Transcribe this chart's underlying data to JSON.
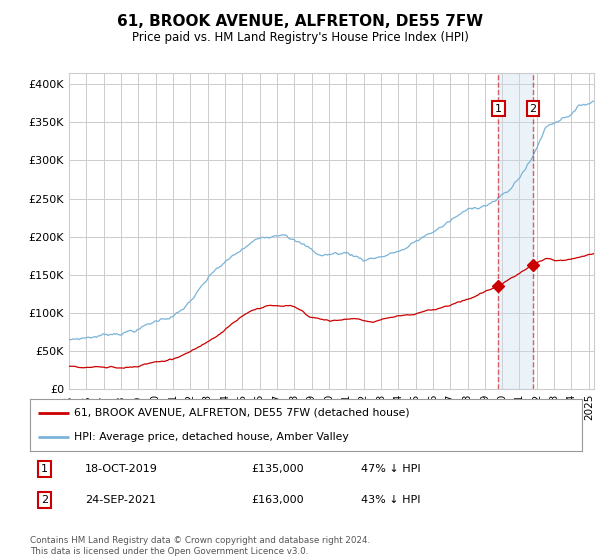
{
  "title": "61, BROOK AVENUE, ALFRETON, DE55 7FW",
  "subtitle": "Price paid vs. HM Land Registry's House Price Index (HPI)",
  "hpi_color": "#7ab4d8",
  "price_color": "#cc0000",
  "vline_color": "#cc0000",
  "vline_alpha": 0.6,
  "background_color": "#ffffff",
  "grid_color": "#cccccc",
  "yticks": [
    0,
    50000,
    100000,
    150000,
    200000,
    250000,
    300000,
    350000,
    400000
  ],
  "ylim": [
    0,
    415000
  ],
  "xlim_start": 1995.0,
  "xlim_end": 2025.3,
  "transaction1_date": 2019.8,
  "transaction1_price": 135000,
  "transaction2_date": 2021.75,
  "transaction2_price": 163000,
  "legend_label_price": "61, BROOK AVENUE, ALFRETON, DE55 7FW (detached house)",
  "legend_label_hpi": "HPI: Average price, detached house, Amber Valley",
  "footnote": "Contains HM Land Registry data © Crown copyright and database right 2024.\nThis data is licensed under the Open Government Licence v3.0.",
  "xtick_years": [
    1995,
    1996,
    1997,
    1998,
    1999,
    2000,
    2001,
    2002,
    2003,
    2004,
    2005,
    2006,
    2007,
    2008,
    2009,
    2010,
    2011,
    2012,
    2013,
    2014,
    2015,
    2016,
    2017,
    2018,
    2019,
    2020,
    2021,
    2022,
    2023,
    2024,
    2025
  ]
}
